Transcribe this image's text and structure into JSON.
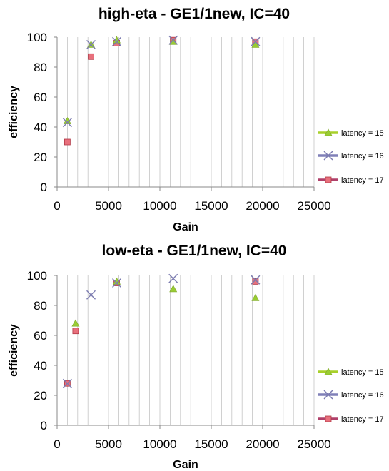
{
  "chart_data": [
    {
      "type": "scatter",
      "title": "high-eta - GE1/1new, IC=40",
      "xlabel": "Gain",
      "ylabel": "efficiency",
      "xlim": [
        0,
        25000
      ],
      "ylim": [
        0,
        100
      ],
      "xticks": [
        "0",
        "5000",
        "10000",
        "15000",
        "20000",
        "25000"
      ],
      "yticks": [
        "0",
        "20",
        "40",
        "60",
        "80",
        "100"
      ],
      "grid": "vertical",
      "legend_position": "right",
      "series": [
        {
          "name": "latency = 15",
          "marker": "triangle",
          "color": "#99cc33",
          "points": [
            [
              1000,
              44
            ],
            [
              3300,
              95
            ],
            [
              5800,
              98
            ],
            [
              11300,
              97
            ],
            [
              19300,
              95
            ]
          ]
        },
        {
          "name": "latency = 16",
          "marker": "x",
          "color": "#7b7bb0",
          "points": [
            [
              1000,
              43
            ],
            [
              3300,
              95
            ],
            [
              5800,
              97
            ],
            [
              11300,
              98
            ],
            [
              19300,
              97
            ]
          ]
        },
        {
          "name": "latency = 17",
          "marker": "square",
          "color": "#e8707c",
          "points": [
            [
              1000,
              30
            ],
            [
              3300,
              87
            ],
            [
              5800,
              96
            ],
            [
              11300,
              98
            ],
            [
              19300,
              97
            ]
          ]
        }
      ]
    },
    {
      "type": "scatter",
      "title": "low-eta - GE1/1new, IC=40",
      "xlabel": "Gain",
      "ylabel": "efficiency",
      "xlim": [
        0,
        25000
      ],
      "ylim": [
        0,
        100
      ],
      "xticks": [
        "0",
        "5000",
        "10000",
        "15000",
        "20000",
        "25000"
      ],
      "yticks": [
        "0",
        "20",
        "40",
        "60",
        "80",
        "100"
      ],
      "grid": "vertical",
      "legend_position": "right",
      "series": [
        {
          "name": "latency = 15",
          "marker": "triangle",
          "color": "#99cc33",
          "points": [
            [
              1800,
              68
            ],
            [
              5800,
              96
            ],
            [
              11300,
              91
            ],
            [
              19300,
              85
            ]
          ]
        },
        {
          "name": "latency = 16",
          "marker": "x",
          "color": "#7b7bb0",
          "points": [
            [
              1000,
              28
            ],
            [
              3300,
              87
            ],
            [
              5800,
              95
            ],
            [
              11300,
              98
            ],
            [
              19300,
              97
            ]
          ]
        },
        {
          "name": "latency = 17",
          "marker": "square",
          "color": "#e8707c",
          "points": [
            [
              1000,
              28
            ],
            [
              1800,
              63
            ],
            [
              5800,
              95
            ],
            [
              19300,
              96
            ]
          ]
        }
      ]
    }
  ]
}
